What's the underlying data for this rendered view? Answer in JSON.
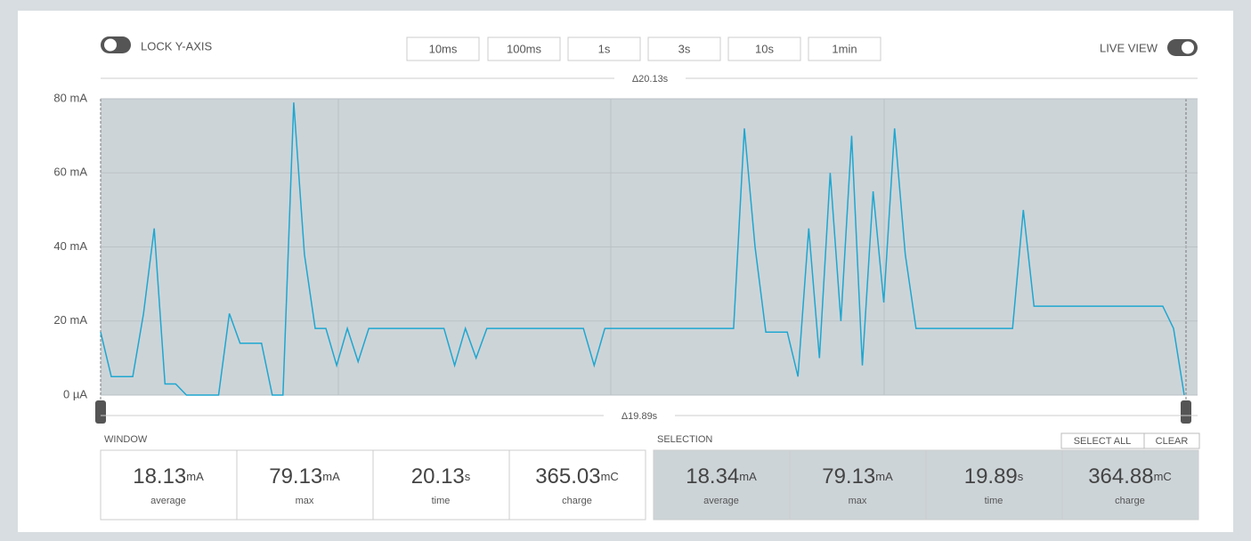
{
  "controls": {
    "lock_label": "LOCK Y-AXIS",
    "live_label": "LIVE VIEW",
    "zoom_buttons": [
      "10ms",
      "100ms",
      "1s",
      "3s",
      "10s",
      "1min"
    ],
    "window_delta": "Δ20.13s",
    "selection_delta": "Δ19.89s"
  },
  "chart_data": {
    "type": "line",
    "color": "#1ea7d0",
    "grid": true,
    "ylim": [
      0,
      80
    ],
    "yticks": [
      {
        "value": 0,
        "label": "0 µA"
      },
      {
        "value": 20,
        "label": "20 mA"
      },
      {
        "value": 40,
        "label": "40 mA"
      },
      {
        "value": 60,
        "label": "60 mA"
      },
      {
        "value": 80,
        "label": "80 mA"
      }
    ],
    "values": [
      17,
      5,
      5,
      5,
      22,
      45,
      3,
      3,
      0,
      0,
      0,
      0,
      22,
      14,
      14,
      14,
      0,
      0,
      79,
      38,
      18,
      18,
      8,
      18,
      9,
      18,
      18,
      18,
      18,
      18,
      18,
      18,
      18,
      8,
      18,
      10,
      18,
      18,
      18,
      18,
      18,
      18,
      18,
      18,
      18,
      18,
      8,
      18,
      18,
      18,
      18,
      18,
      18,
      18,
      18,
      18,
      18,
      18,
      18,
      18,
      72,
      40,
      17,
      17,
      17,
      5,
      45,
      10,
      60,
      20,
      70,
      8,
      55,
      25,
      72,
      38,
      18,
      18,
      18,
      18,
      18,
      18,
      18,
      18,
      18,
      18,
      50,
      24,
      24,
      24,
      24,
      24,
      24,
      24,
      24,
      24,
      24,
      24,
      24,
      24,
      18,
      0
    ]
  },
  "window": {
    "title": "WINDOW",
    "stats": [
      {
        "value": "18.13",
        "unit": "mA",
        "label": "average"
      },
      {
        "value": "79.13",
        "unit": "mA",
        "label": "max"
      },
      {
        "value": "20.13",
        "unit": "s",
        "label": "time"
      },
      {
        "value": "365.03",
        "unit": "mC",
        "label": "charge"
      }
    ]
  },
  "selection": {
    "title": "SELECTION",
    "select_all": "SELECT ALL",
    "clear": "CLEAR",
    "stats": [
      {
        "value": "18.34",
        "unit": "mA",
        "label": "average"
      },
      {
        "value": "79.13",
        "unit": "mA",
        "label": "max"
      },
      {
        "value": "19.89",
        "unit": "s",
        "label": "time"
      },
      {
        "value": "364.88",
        "unit": "mC",
        "label": "charge"
      }
    ]
  }
}
